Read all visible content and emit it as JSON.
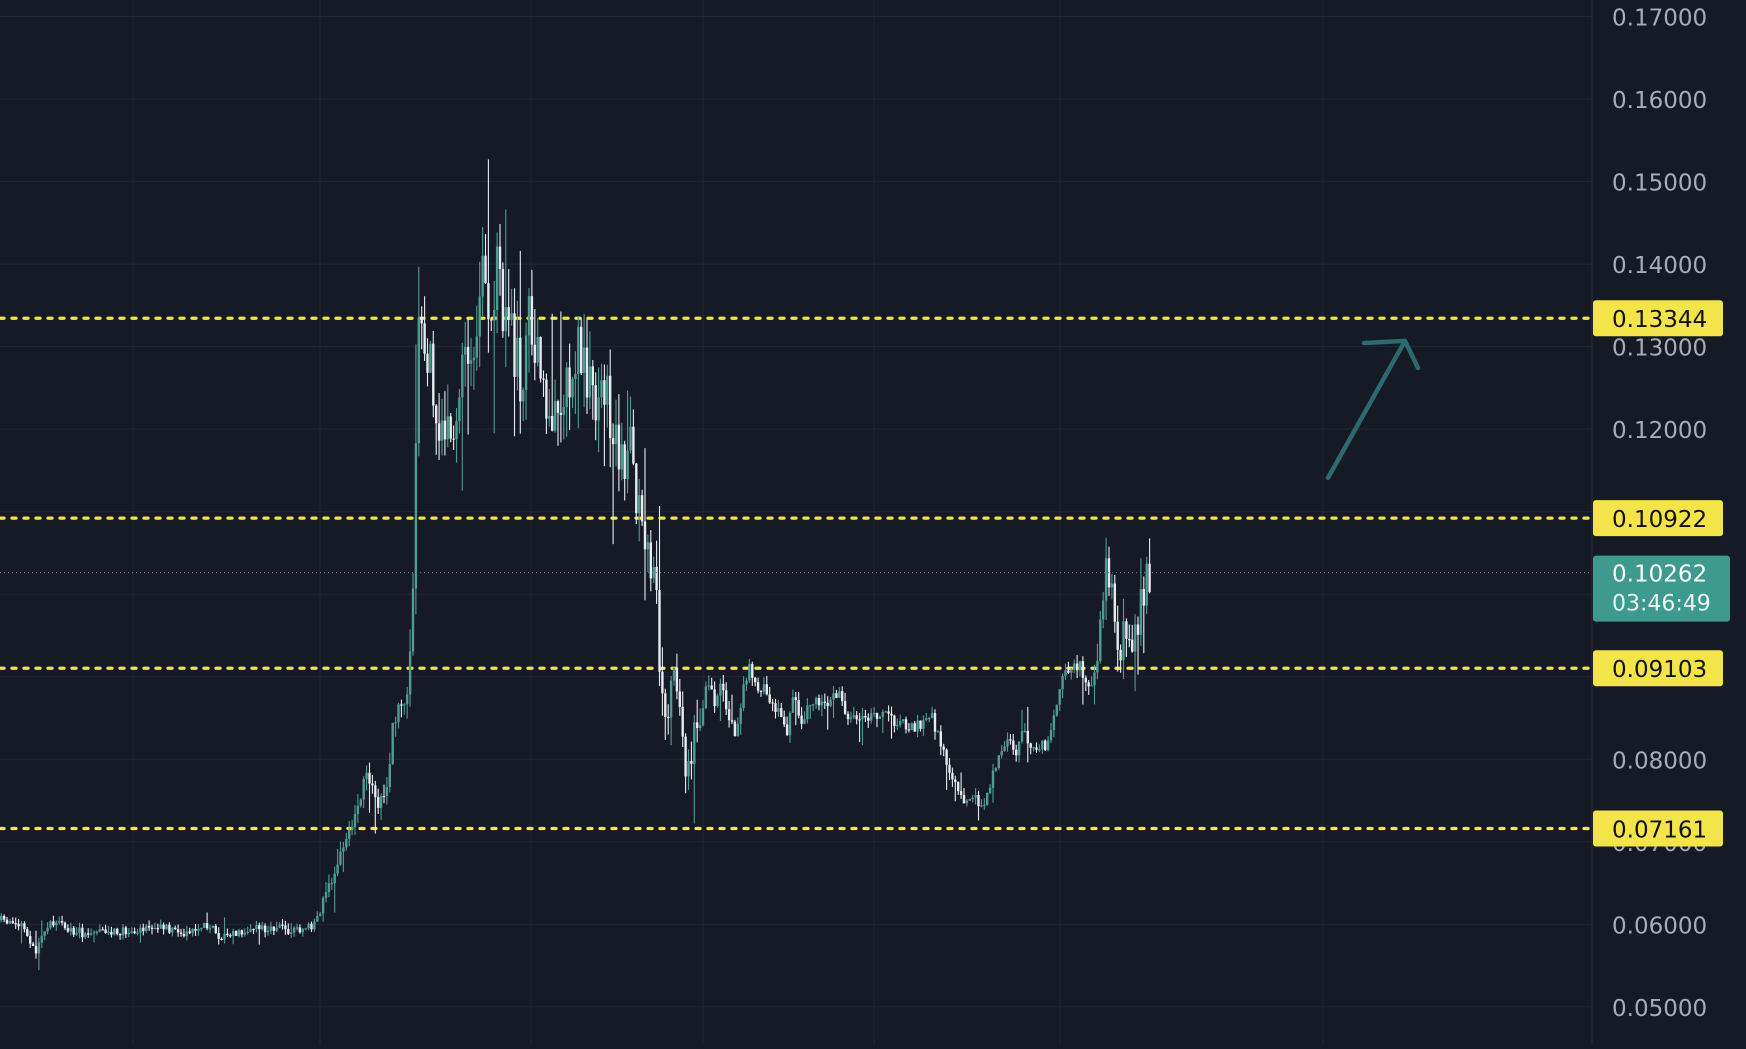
{
  "chart_data": {
    "type": "candlestick",
    "title": "",
    "xlabel": "",
    "ylabel": "",
    "ylim": [
      0.0455,
      0.172
    ],
    "y_ticks": [
      "0.05000",
      "0.06000",
      "0.07000",
      "0.08000",
      "0.12000",
      "0.13000",
      "0.14000",
      "0.15000",
      "0.16000",
      "0.17000"
    ],
    "grid": true,
    "colors": {
      "background": "#161a25",
      "grid": "#232735",
      "bull": "#4e9d93",
      "bear": "#e8ecef",
      "level_line": "#f3e44a",
      "level_label_bg": "#f3e44a",
      "current_price_bg": "#3e9a8e",
      "arrow": "#2b6a70"
    },
    "levels": [
      {
        "value": 0.13344,
        "label": "0.13344"
      },
      {
        "value": 0.10922,
        "label": "0.10922"
      },
      {
        "value": 0.09103,
        "label": "0.09103"
      },
      {
        "value": 0.07161,
        "label": "0.07161"
      }
    ],
    "current_price": {
      "value": 0.10262,
      "label": "0.10262",
      "countdown": "03:46:49"
    },
    "annotation": {
      "type": "arrow",
      "icon": "arrow-up-right-icon",
      "from": [
        0.1079,
        0.1141
      ],
      "to": [
        0.1214,
        0.1307
      ]
    },
    "price_path": [
      [
        0,
        0.0605
      ],
      [
        10,
        0.0602
      ],
      [
        20,
        0.0599
      ],
      [
        30,
        0.0575
      ],
      [
        35,
        0.0565
      ],
      [
        42,
        0.059
      ],
      [
        55,
        0.0605
      ],
      [
        70,
        0.0592
      ],
      [
        90,
        0.0588
      ],
      [
        120,
        0.0592
      ],
      [
        150,
        0.0598
      ],
      [
        180,
        0.059
      ],
      [
        205,
        0.06
      ],
      [
        220,
        0.0585
      ],
      [
        240,
        0.0593
      ],
      [
        270,
        0.0597
      ],
      [
        290,
        0.0593
      ],
      [
        310,
        0.0598
      ],
      [
        325,
        0.063
      ],
      [
        340,
        0.069
      ],
      [
        355,
        0.073
      ],
      [
        365,
        0.078
      ],
      [
        375,
        0.075
      ],
      [
        385,
        0.076
      ],
      [
        392,
        0.084
      ],
      [
        400,
        0.086
      ],
      [
        408,
        0.091
      ],
      [
        413,
        0.104
      ],
      [
        416,
        0.132
      ],
      [
        420,
        0.13
      ],
      [
        425,
        0.124
      ],
      [
        430,
        0.129
      ],
      [
        436,
        0.119
      ],
      [
        442,
        0.122
      ],
      [
        448,
        0.118
      ],
      [
        455,
        0.123
      ],
      [
        462,
        0.127
      ],
      [
        470,
        0.125
      ],
      [
        476,
        0.128
      ],
      [
        480,
        0.143
      ],
      [
        486,
        0.138
      ],
      [
        490,
        0.132
      ],
      [
        497,
        0.142
      ],
      [
        502,
        0.135
      ],
      [
        508,
        0.132
      ],
      [
        515,
        0.129
      ],
      [
        520,
        0.125
      ],
      [
        527,
        0.133
      ],
      [
        535,
        0.129
      ],
      [
        542,
        0.124
      ],
      [
        550,
        0.12
      ],
      [
        556,
        0.123
      ],
      [
        563,
        0.125
      ],
      [
        570,
        0.127
      ],
      [
        577,
        0.131
      ],
      [
        585,
        0.126
      ],
      [
        592,
        0.124
      ],
      [
        600,
        0.125
      ],
      [
        608,
        0.123
      ],
      [
        614,
        0.118
      ],
      [
        622,
        0.116
      ],
      [
        630,
        0.118
      ],
      [
        636,
        0.112
      ],
      [
        642,
        0.105
      ],
      [
        648,
        0.104
      ],
      [
        655,
        0.099
      ],
      [
        660,
        0.087
      ],
      [
        667,
        0.086
      ],
      [
        673,
        0.09
      ],
      [
        680,
        0.085
      ],
      [
        686,
        0.078
      ],
      [
        692,
        0.083
      ],
      [
        700,
        0.085
      ],
      [
        707,
        0.09
      ],
      [
        713,
        0.087
      ],
      [
        720,
        0.089
      ],
      [
        727,
        0.085
      ],
      [
        735,
        0.083
      ],
      [
        742,
        0.088
      ],
      [
        748,
        0.092
      ],
      [
        755,
        0.089
      ],
      [
        762,
        0.089
      ],
      [
        770,
        0.087
      ],
      [
        778,
        0.086
      ],
      [
        786,
        0.083
      ],
      [
        793,
        0.088
      ],
      [
        800,
        0.085
      ],
      [
        808,
        0.086
      ],
      [
        815,
        0.087
      ],
      [
        822,
        0.0865
      ],
      [
        830,
        0.0875
      ],
      [
        838,
        0.088
      ],
      [
        845,
        0.0855
      ],
      [
        855,
        0.0855
      ],
      [
        865,
        0.085
      ],
      [
        875,
        0.0852
      ],
      [
        885,
        0.085
      ],
      [
        895,
        0.0845
      ],
      [
        905,
        0.084
      ],
      [
        915,
        0.0838
      ],
      [
        925,
        0.0845
      ],
      [
        932,
        0.085
      ],
      [
        938,
        0.082
      ],
      [
        945,
        0.08
      ],
      [
        952,
        0.077
      ],
      [
        960,
        0.076
      ],
      [
        967,
        0.0745
      ],
      [
        974,
        0.0755
      ],
      [
        980,
        0.074
      ],
      [
        987,
        0.076
      ],
      [
        993,
        0.079
      ],
      [
        1000,
        0.081
      ],
      [
        1008,
        0.082
      ],
      [
        1015,
        0.081
      ],
      [
        1022,
        0.083
      ],
      [
        1030,
        0.082
      ],
      [
        1038,
        0.0815
      ],
      [
        1045,
        0.0815
      ],
      [
        1052,
        0.085
      ],
      [
        1058,
        0.089
      ],
      [
        1065,
        0.09
      ],
      [
        1072,
        0.092
      ],
      [
        1079,
        0.091
      ],
      [
        1086,
        0.089
      ],
      [
        1093,
        0.09
      ],
      [
        1098,
        0.094
      ],
      [
        1103,
        0.102
      ],
      [
        1108,
        0.103
      ],
      [
        1113,
        0.098
      ],
      [
        1118,
        0.094
      ],
      [
        1124,
        0.095
      ],
      [
        1130,
        0.093
      ],
      [
        1136,
        0.095
      ],
      [
        1141,
        0.1
      ],
      [
        1145,
        0.102
      ],
      [
        1149,
        0.1026
      ]
    ]
  }
}
